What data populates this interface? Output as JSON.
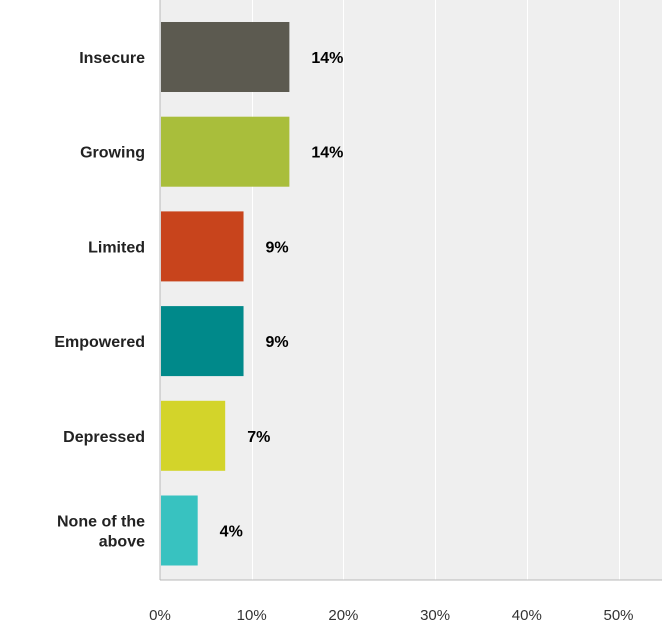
{
  "chart_data": {
    "type": "bar",
    "orientation": "horizontal",
    "categories": [
      "Insecure",
      "Growing",
      "Limited",
      "Empowered",
      "Depressed",
      "None of the above"
    ],
    "category_lines": [
      [
        "Insecure"
      ],
      [
        "Growing"
      ],
      [
        "Limited"
      ],
      [
        "Empowered"
      ],
      [
        "Depressed"
      ],
      [
        "None of the",
        "above"
      ]
    ],
    "values": [
      14,
      14,
      9,
      9,
      7,
      4
    ],
    "value_labels": [
      "14%",
      "14%",
      "9%",
      "9%",
      "7%",
      "4%"
    ],
    "colors": [
      "#5c5a50",
      "#a9be3b",
      "#c8441c",
      "#00898a",
      "#d3d42a",
      "#38c2c0"
    ],
    "xlim": [
      0,
      55
    ],
    "x_ticks": [
      0,
      10,
      20,
      30,
      40,
      50
    ],
    "x_tick_labels": [
      "0%",
      "10%",
      "20%",
      "30%",
      "40%",
      "50%"
    ],
    "grid": true,
    "plot_background": "#efefef",
    "grid_color": "#ffffff"
  }
}
